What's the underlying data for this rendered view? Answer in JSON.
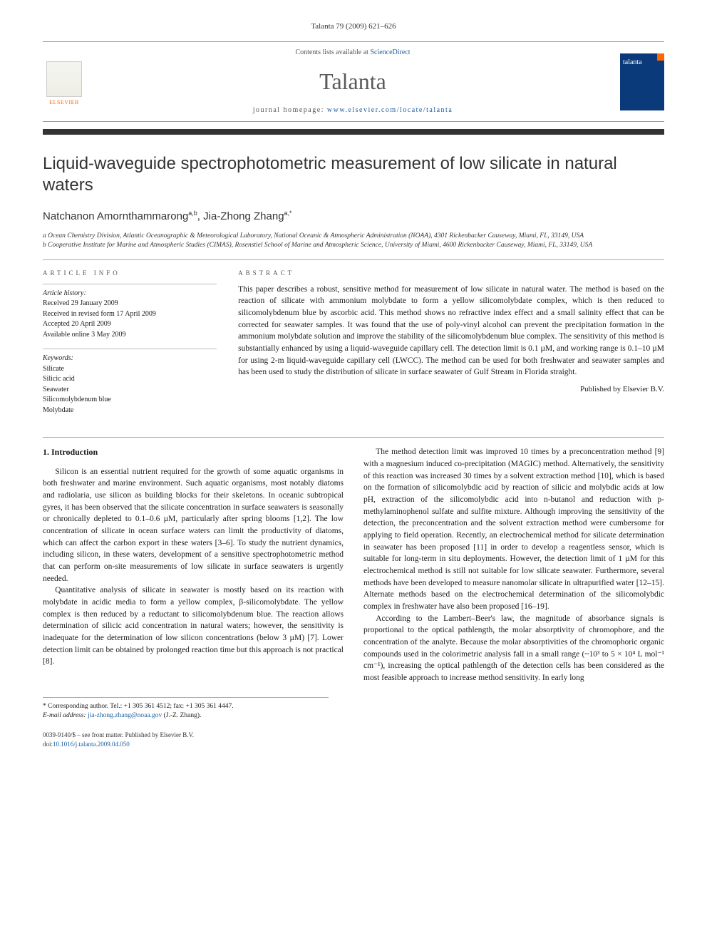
{
  "top_meta": "Talanta 79 (2009) 621–626",
  "header": {
    "contents_prefix": "Contents lists available at ",
    "contents_link": "ScienceDirect",
    "journal": "Talanta",
    "homepage_prefix": "journal homepage: ",
    "homepage_link": "www.elsevier.com/locate/talanta",
    "publisher": "ELSEVIER",
    "cover_label": "talanta"
  },
  "title": "Liquid-waveguide spectrophotometric measurement of low silicate in natural waters",
  "authors_html": "Natchanon Amornthammarong",
  "author1_sup": "a,b",
  "author_sep": ", ",
  "author2": "Jia-Zhong Zhang",
  "author2_sup": "a,*",
  "affiliations": {
    "a": "a Ocean Chemistry Division, Atlantic Oceanographic & Meteorological Laboratory, National Oceanic & Atmospheric Administration (NOAA), 4301 Rickenbacker Causeway, Miami, FL, 33149, USA",
    "b": "b Cooperative Institute for Marine and Atmospheric Studies (CIMAS), Rosenstiel School of Marine and Atmospheric Science, University of Miami, 4600 Rickenbacker Causeway, Miami, FL, 33149, USA"
  },
  "info": {
    "heading": "ARTICLE INFO",
    "history_label": "Article history:",
    "history": [
      "Received 29 January 2009",
      "Received in revised form 17 April 2009",
      "Accepted 20 April 2009",
      "Available online 3 May 2009"
    ],
    "keywords_label": "Keywords:",
    "keywords": [
      "Silicate",
      "Silicic acid",
      "Seawater",
      "Silicomolybdenum blue",
      "Molybdate"
    ]
  },
  "abstract": {
    "heading": "ABSTRACT",
    "text": "This paper describes a robust, sensitive method for measurement of low silicate in natural water. The method is based on the reaction of silicate with ammonium molybdate to form a yellow silicomolybdate complex, which is then reduced to silicomolybdenum blue by ascorbic acid. This method shows no refractive index effect and a small salinity effect that can be corrected for seawater samples. It was found that the use of poly-vinyl alcohol can prevent the precipitation formation in the ammonium molybdate solution and improve the stability of the silicomolybdenum blue complex. The sensitivity of this method is substantially enhanced by using a liquid-waveguide capillary cell. The detection limit is 0.1 µM, and working range is 0.1–10 µM for using 2-m liquid-waveguide capillary cell (LWCC). The method can be used for both freshwater and seawater samples and has been used to study the distribution of silicate in surface seawater of Gulf Stream in Florida straight.",
    "published": "Published by Elsevier B.V."
  },
  "body": {
    "section_num": "1.",
    "section_title": "Introduction",
    "p1": "Silicon is an essential nutrient required for the growth of some aquatic organisms in both freshwater and marine environment. Such aquatic organisms, most notably diatoms and radiolaria, use silicon as building blocks for their skeletons. In oceanic subtropical gyres, it has been observed that the silicate concentration in surface seawaters is seasonally or chronically depleted to 0.1–0.6 µM, particularly after spring blooms [1,2]. The low concentration of silicate in ocean surface waters can limit the productivity of diatoms, which can affect the carbon export in these waters [3–6]. To study the nutrient dynamics, including silicon, in these waters, development of a sensitive spectrophotometric method that can perform on-site measurements of low silicate in surface seawaters is urgently needed.",
    "p2": "Quantitative analysis of silicate in seawater is mostly based on its reaction with molybdate in acidic media to form a yellow complex, β-silicomolybdate. The yellow complex is then reduced by a reductant to silicomolybdenum blue. The reaction allows determination of silicic acid concentration in natural waters; however, the sensitivity is inadequate for the determination of low silicon concentrations (below 3 µM) [7]. Lower detection limit can be obtained by prolonged reaction time but this approach is not practical [8].",
    "p3": "The method detection limit was improved 10 times by a preconcentration method [9] with a magnesium induced co-precipitation (MAGIC) method. Alternatively, the sensitivity of this reaction was increased 30 times by a solvent extraction method [10], which is based on the formation of silicomolybdic acid by reaction of silicic and molybdic acids at low pH, extraction of the silicomolybdic acid into n-butanol and reduction with p-methylaminophenol sulfate and sulfite mixture. Although improving the sensitivity of the detection, the preconcentration and the solvent extraction method were cumbersome for applying to field operation. Recently, an electrochemical method for silicate determination in seawater has been proposed [11] in order to develop a reagentless sensor, which is suitable for long-term in situ deployments. However, the detection limit of 1 µM for this electrochemical method is still not suitable for low silicate seawater. Furthermore, several methods have been developed to measure nanomolar silicate in ultrapurified water [12–15]. Alternate methods based on the electrochemical determination of the silicomolybdic complex in freshwater have also been proposed [16–19].",
    "p4": "According to the Lambert–Beer's law, the magnitude of absorbance signals is proportional to the optical pathlength, the molar absorptivity of chromophore, and the concentration of the analyte. Because the molar absorptivities of the chromophoric organic compounds used in the colorimetric analysis fall in a small range (~10³ to 5 × 10⁴ L mol⁻¹ cm⁻¹), increasing the optical pathlength of the detection cells has been considered as the most feasible approach to increase method sensitivity. In early long"
  },
  "footnote": {
    "corresponding": "* Corresponding author. Tel.: +1 305 361 4512; fax: +1 305 361 4447.",
    "email_label": "E-mail address: ",
    "email": "jia-zhong.zhang@noaa.gov",
    "email_suffix": " (J.-Z. Zhang)."
  },
  "bottom": {
    "line1": "0039-9140/$ – see front matter. Published by Elsevier B.V.",
    "doi_label": "doi:",
    "doi": "10.1016/j.talanta.2009.04.050"
  },
  "colors": {
    "link": "#1a5c9e",
    "elsevier_orange": "#ff6600",
    "cover_blue": "#0a3a7a",
    "rule_dark": "#333333"
  }
}
